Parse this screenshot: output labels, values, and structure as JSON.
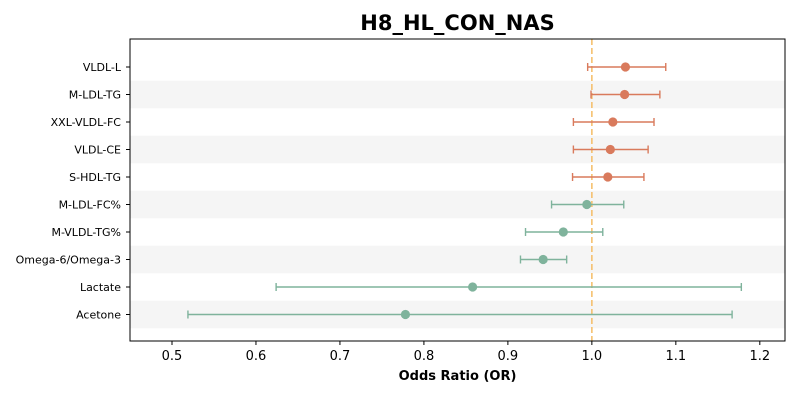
{
  "chart_data": {
    "type": "forest",
    "title": "H8_HL_CON_NAS",
    "xlabel": "Odds Ratio (OR)",
    "xlim": [
      0.45,
      1.23
    ],
    "xticks": [
      0.5,
      0.6,
      0.7,
      0.8,
      0.9,
      1.0,
      1.1,
      1.2
    ],
    "xtick_labels": [
      "0.5",
      "0.6",
      "0.7",
      "0.8",
      "0.9",
      "1.0",
      "1.1",
      "1.2"
    ],
    "reference_line": 1.0,
    "reference_color": "#f5c06f",
    "positive_color": "#d97a5c",
    "negative_color": "#7fb39c",
    "stripe_color": "#f5f5f5",
    "grid": false,
    "rows": [
      {
        "label": "VLDL-L",
        "or": 1.04,
        "ci_low": 0.995,
        "ci_high": 1.088
      },
      {
        "label": "M-LDL-TG",
        "or": 1.039,
        "ci_low": 0.999,
        "ci_high": 1.081
      },
      {
        "label": "XXL-VLDL-FC",
        "or": 1.025,
        "ci_low": 0.978,
        "ci_high": 1.074
      },
      {
        "label": "VLDL-CE",
        "or": 1.022,
        "ci_low": 0.978,
        "ci_high": 1.067
      },
      {
        "label": "S-HDL-TG",
        "or": 1.019,
        "ci_low": 0.977,
        "ci_high": 1.062
      },
      {
        "label": "M-LDL-FC%",
        "or": 0.994,
        "ci_low": 0.952,
        "ci_high": 1.038
      },
      {
        "label": "M-VLDL-TG%",
        "or": 0.966,
        "ci_low": 0.921,
        "ci_high": 1.013
      },
      {
        "label": "Omega-6/Omega-3",
        "or": 0.942,
        "ci_low": 0.915,
        "ci_high": 0.97
      },
      {
        "label": "Lactate",
        "or": 0.858,
        "ci_low": 0.624,
        "ci_high": 1.178
      },
      {
        "label": "Acetone",
        "or": 0.778,
        "ci_low": 0.519,
        "ci_high": 1.167
      }
    ]
  }
}
